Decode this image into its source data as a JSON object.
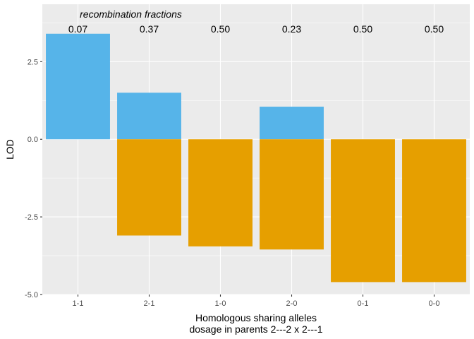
{
  "chart_data": {
    "type": "bar",
    "xlabel": "Homologous sharing alleles",
    "xlabel_line2": "dosage in parents  2---2  x  2---1",
    "ylabel": "LOD",
    "annotation_title": "recombination fractions",
    "categories": [
      "1-1",
      "2-1",
      "1-0",
      "2-0",
      "0-1",
      "0-0"
    ],
    "recombination_fractions": [
      "0.07",
      "0.37",
      "0.50",
      "0.23",
      "0.50",
      "0.50"
    ],
    "series": [
      {
        "values": [
          3.4,
          1.5,
          0.0,
          1.05,
          0.0,
          0.0
        ],
        "color": "#56B4E9"
      },
      {
        "values": [
          0.0,
          -3.1,
          -3.45,
          -3.55,
          -4.6,
          -4.6
        ],
        "color": "#E69F00"
      }
    ],
    "ylim": [
      -5.0,
      4.35
    ],
    "yticks": [
      -5.0,
      -2.5,
      0.0,
      2.5
    ],
    "ytick_labels": [
      "-5.0",
      "-2.5",
      "0.0",
      "2.5"
    ],
    "grid": true,
    "panel_background": "#EBEBEB",
    "gridline_color": "#FFFFFF"
  }
}
